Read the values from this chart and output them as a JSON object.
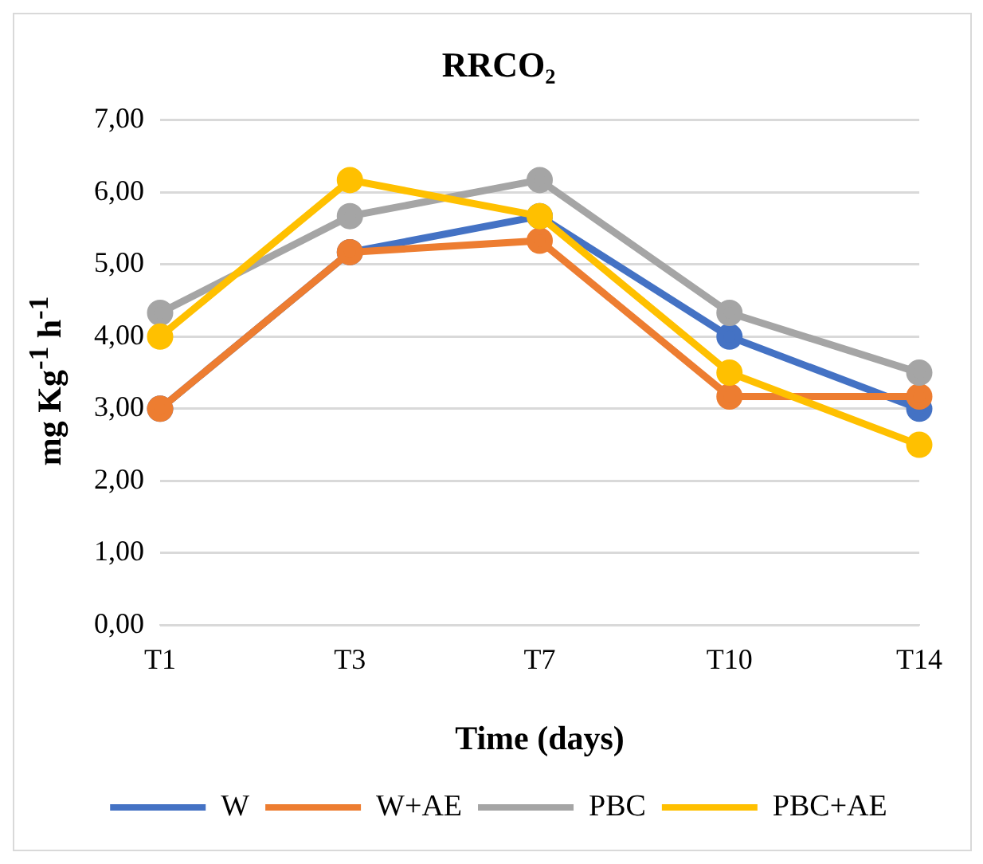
{
  "chart_data": {
    "type": "line",
    "title": "RRCO₂",
    "xlabel": "Time (days)",
    "ylabel": "mg Kg$^{-1}$ h$^{-1}$",
    "categories": [
      "T1",
      "T3",
      "T7",
      "T10",
      "T14"
    ],
    "series": [
      {
        "name": "W",
        "color": "#4472c4",
        "values": [
          3.0,
          5.17,
          5.67,
          4.0,
          3.0
        ]
      },
      {
        "name": "W+AE",
        "color": "#ed7d31",
        "values": [
          3.0,
          5.17,
          5.33,
          3.17,
          3.17
        ]
      },
      {
        "name": "PBC",
        "color": "#a5a5a5",
        "values": [
          4.33,
          5.67,
          6.17,
          4.33,
          3.5
        ]
      },
      {
        "name": "PBC+AE",
        "color": "#ffc000",
        "values": [
          4.0,
          6.17,
          5.67,
          3.5,
          2.5
        ]
      }
    ],
    "ylim": [
      0,
      7
    ],
    "yticks": [
      {
        "value": 0,
        "label": "0,00"
      },
      {
        "value": 1,
        "label": "1,00"
      },
      {
        "value": 2,
        "label": "2,00"
      },
      {
        "value": 3,
        "label": "3,00"
      },
      {
        "value": 4,
        "label": "4,00"
      },
      {
        "value": 5,
        "label": "5,00"
      },
      {
        "value": 6,
        "label": "6,00"
      },
      {
        "value": 7,
        "label": "7,00"
      }
    ],
    "grid": "y",
    "legend": "bottom",
    "marker": "circle",
    "line_style": "solid"
  }
}
